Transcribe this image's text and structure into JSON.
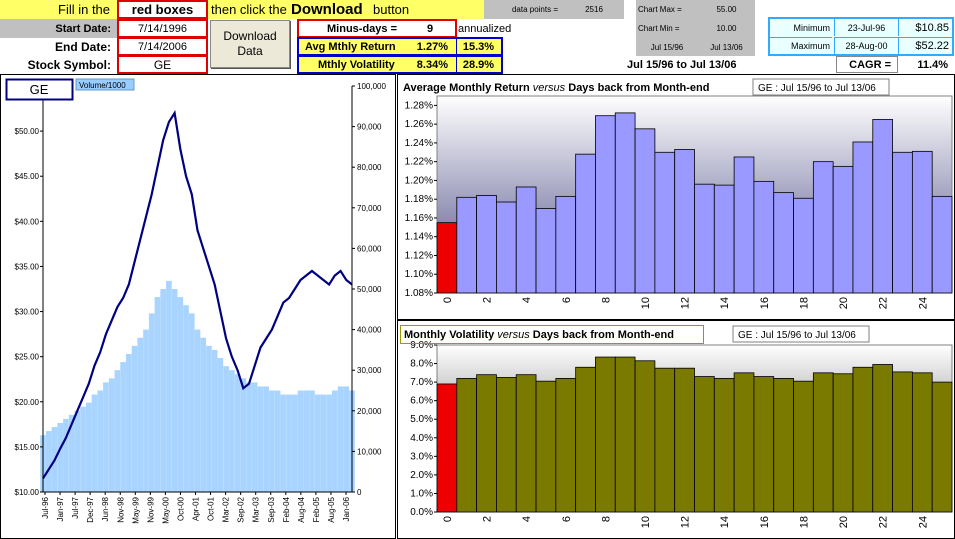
{
  "header": {
    "fill_in": "Fill in the",
    "red_boxes": "red boxes",
    "then_click": "then click the",
    "download_word": "Download",
    "button_word": "button",
    "data_points_label": "data points =",
    "data_points_value": "2516",
    "chart_max_label": "Chart Max =",
    "chart_max_value": "55.00",
    "chart_min_label": "Chart Min =",
    "chart_min_value": "10.00",
    "chart_start": "Jul 15/96",
    "chart_end": "Jul 13/06"
  },
  "form": {
    "start_label": "Start Date:",
    "start_value": "7/14/1996",
    "end_label": "End Date:",
    "end_value": "7/14/2006",
    "symbol_label": "Stock Symbol:",
    "symbol_value": "GE",
    "download_button": "Download Data",
    "minus_days_label": "Minus-days =",
    "minus_days_value": "9",
    "annualized": "annualized",
    "avg_label": "Avg Mthly Return",
    "avg_value": "1.27%",
    "avg_annual": "15.3%",
    "vol_label": "Mthly Volatility",
    "vol_value": "8.34%",
    "vol_annual": "28.9%",
    "period": "Jul 15/96 to Jul 13/06"
  },
  "stats": {
    "min_label": "Minimum",
    "min_date": "23-Jul-96",
    "min_value": "$10.85",
    "max_label": "Maximum",
    "max_date": "28-Aug-00",
    "max_value": "$52.22",
    "cagr_label": "CAGR =",
    "cagr_value": "11.4%"
  },
  "chart_data": [
    {
      "type": "line",
      "symbol_label": "GE",
      "legend": "Volume/1000",
      "y_ticks": [
        "$10.00",
        "$15.00",
        "$20.00",
        "$25.00",
        "$30.00",
        "$35.00",
        "$40.00",
        "$45.00",
        "$50.00"
      ],
      "ylim": [
        10,
        55
      ],
      "y2_ticks": [
        "0",
        "10,000",
        "20,000",
        "30,000",
        "40,000",
        "50,000",
        "60,000",
        "70,000",
        "80,000",
        "90,000",
        "100,000"
      ],
      "y2lim": [
        0,
        100000
      ],
      "x_ticks": [
        "Jul-96",
        "Jan-97",
        "Jul-97",
        "Dec-97",
        "Jun-98",
        "Nov-98",
        "May-99",
        "Nov-99",
        "May-00",
        "Oct-00",
        "Apr-01",
        "Oct-01",
        "Mar-02",
        "Sep-02",
        "Mar-03",
        "Sep-03",
        "Feb-04",
        "Aug-04",
        "Feb-05",
        "Aug-05",
        "Jan-06"
      ],
      "price": [
        11.5,
        12.5,
        13.5,
        14.8,
        16.0,
        17.5,
        19.0,
        20.5,
        22.0,
        24.0,
        25.5,
        27.5,
        29.0,
        30.5,
        31.5,
        33.0,
        35.5,
        38.0,
        40.5,
        43.0,
        46.0,
        49.0,
        51.0,
        52.0,
        48.0,
        45.0,
        43.0,
        39.0,
        37.0,
        35.0,
        33.0,
        30.0,
        27.0,
        25.0,
        23.5,
        21.5,
        22.0,
        24.0,
        26.0,
        27.0,
        28.0,
        29.5,
        31.0,
        31.5,
        32.5,
        33.5,
        34.0,
        34.5,
        34.0,
        33.5,
        33.0,
        34.0,
        34.5,
        33.5,
        33.0
      ],
      "volume": [
        14000,
        15000,
        16000,
        17000,
        18000,
        19000,
        20000,
        21000,
        22000,
        24000,
        25000,
        27000,
        28000,
        30000,
        32000,
        34000,
        36000,
        38000,
        40000,
        44000,
        48000,
        50000,
        52000,
        50000,
        48000,
        46000,
        44000,
        40000,
        38000,
        36000,
        35000,
        33000,
        31000,
        30000,
        29000,
        28000,
        27000,
        27000,
        26000,
        26000,
        25000,
        25000,
        24000,
        24000,
        24000,
        25000,
        25000,
        25000,
        24000,
        24000,
        24000,
        25000,
        26000,
        26000,
        25000
      ]
    },
    {
      "type": "bar",
      "title_part1": "Average Monthly Return",
      "title_versus": "versus",
      "title_part2": "Days back from Month-end",
      "legend": "GE : Jul 15/96 to Jul 13/06",
      "categories": [
        0,
        1,
        2,
        3,
        4,
        5,
        6,
        7,
        8,
        9,
        10,
        11,
        12,
        13,
        14,
        15,
        16,
        17,
        18,
        19,
        20,
        21,
        22,
        23,
        24,
        25
      ],
      "x_tick_labels": [
        "0",
        "2",
        "4",
        "6",
        "8",
        "10",
        "12",
        "14",
        "16",
        "18",
        "20",
        "22",
        "24"
      ],
      "values": [
        1.155,
        1.182,
        1.184,
        1.177,
        1.193,
        1.17,
        1.183,
        1.228,
        1.269,
        1.272,
        1.255,
        1.23,
        1.233,
        1.196,
        1.195,
        1.225,
        1.199,
        1.187,
        1.181,
        1.22,
        1.215,
        1.241,
        1.265,
        1.23,
        1.231,
        1.183
      ],
      "y_ticks": [
        "1.08%",
        "1.10%",
        "1.12%",
        "1.14%",
        "1.16%",
        "1.18%",
        "1.20%",
        "1.22%",
        "1.24%",
        "1.26%",
        "1.28%"
      ],
      "ylim": [
        1.08,
        1.29
      ],
      "highlight_color": "#ee0000",
      "bar_color": "#9999ff"
    },
    {
      "type": "bar",
      "title_part1": "Monthly Volatility",
      "title_versus": "versus",
      "title_part2": "Days back from Month-end",
      "legend": "GE : Jul 15/96 to Jul 13/06",
      "categories": [
        0,
        1,
        2,
        3,
        4,
        5,
        6,
        7,
        8,
        9,
        10,
        11,
        12,
        13,
        14,
        15,
        16,
        17,
        18,
        19,
        20,
        21,
        22,
        23,
        24,
        25
      ],
      "x_tick_labels": [
        "0",
        "2",
        "4",
        "6",
        "8",
        "10",
        "12",
        "14",
        "16",
        "18",
        "20",
        "22",
        "24"
      ],
      "values": [
        6.9,
        7.2,
        7.4,
        7.25,
        7.4,
        7.05,
        7.2,
        7.8,
        8.35,
        8.35,
        8.15,
        7.75,
        7.75,
        7.3,
        7.2,
        7.5,
        7.3,
        7.2,
        7.05,
        7.5,
        7.45,
        7.8,
        7.95,
        7.55,
        7.5,
        7.0
      ],
      "y_ticks": [
        "0.0%",
        "1.0%",
        "2.0%",
        "3.0%",
        "4.0%",
        "5.0%",
        "6.0%",
        "7.0%",
        "8.0%",
        "9.0%"
      ],
      "ylim": [
        0,
        9
      ],
      "highlight_color": "#ee0000",
      "bar_color": "#7a7a00"
    }
  ]
}
